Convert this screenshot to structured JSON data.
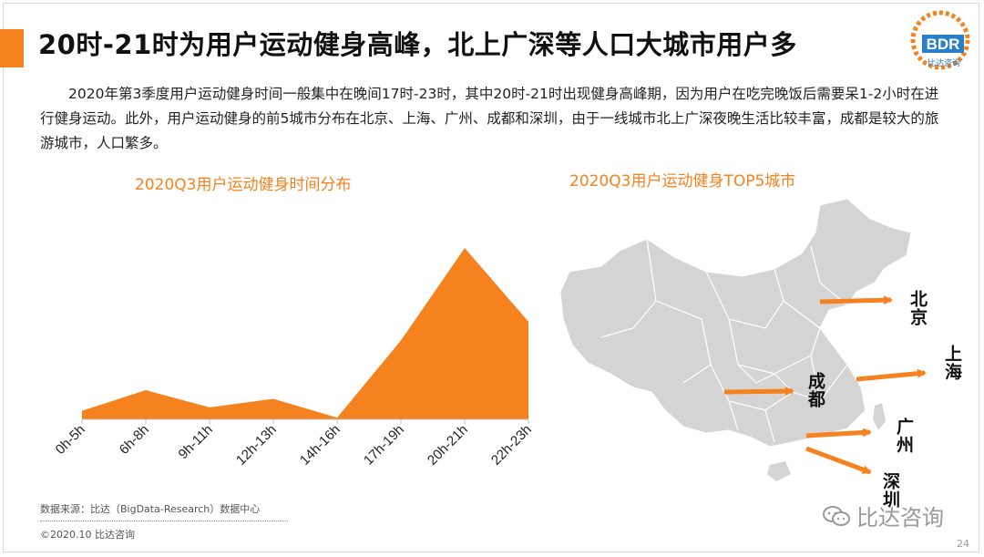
{
  "header": {
    "title": "20时-21时为用户运动健身高峰，北上广深等人口大城市用户多",
    "logo_text": "BDR",
    "logo_subtext": "比达咨询"
  },
  "paragraph": "2020年第3季度用户运动健身时间一般集中在晚间17时-23时，其中20时-21时出现健身高峰期，因为用户在吃完晚饭后需要呆1-2小时在进行健身运动。此外，用户运动健身的前5城市分布在北京、上海、广州、成都和深圳，由于一线城市北上广深夜晚生活比较丰富，成都是较大的旅游城市，人口繁多。",
  "chart_data": {
    "type": "area",
    "title": "2020Q3用户运动健身时间分布",
    "categories": [
      "0h-5h",
      "6h-8h",
      "9h-11h",
      "12h-13h",
      "14h-16h",
      "17h-19h",
      "20h-21h",
      "22h-23h"
    ],
    "values": [
      5,
      17,
      7,
      12,
      1,
      46,
      100,
      57
    ],
    "ylim": [
      0,
      100
    ],
    "grid": false,
    "legend": "none",
    "color": "#f5821f"
  },
  "map": {
    "title": "2020Q3用户运动健身TOP5城市",
    "cities": [
      {
        "label": "北京"
      },
      {
        "label": "上海"
      },
      {
        "label": "成都"
      },
      {
        "label": "广州"
      },
      {
        "label": "深圳"
      }
    ],
    "arrow_color": "#f5821f",
    "land_color": "#d4d4d4"
  },
  "footer": {
    "source": "数据来源：比达（BigData-Research）数据中心",
    "copyright": "©2020.10 比达咨询",
    "watermark": "比达咨询",
    "page": "24"
  }
}
